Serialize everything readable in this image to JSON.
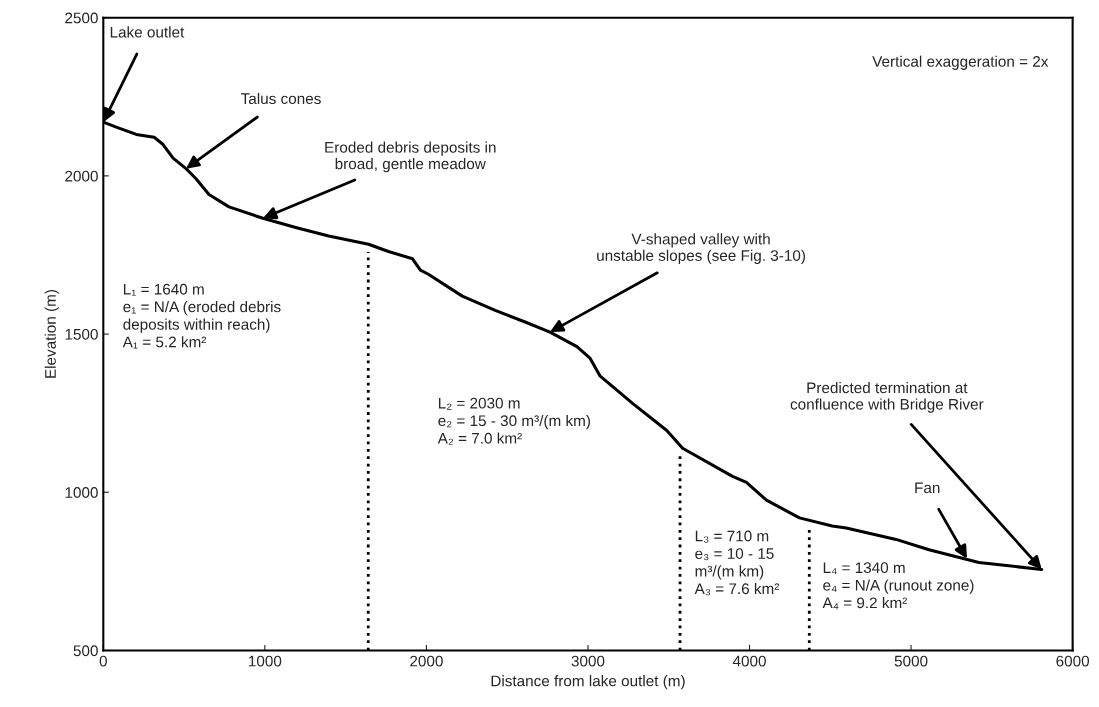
{
  "chart_data": {
    "type": "line",
    "xlabel": "Distance from lake outlet (m)",
    "ylabel": "Elevation (m)",
    "xlim": [
      0,
      6000
    ],
    "ylim": [
      500,
      2500
    ],
    "xticks": [
      0,
      1000,
      2000,
      3000,
      4000,
      5000,
      6000
    ],
    "yticks": [
      500,
      1000,
      1500,
      2000,
      2500
    ],
    "grid": false,
    "legend": false,
    "marker": "none",
    "line_style": "solid",
    "series": [
      {
        "color": "#000000",
        "x": [
          0,
          80,
          204,
          315,
          370,
          432,
          512,
          574,
          654,
          778,
          988,
          1191,
          1395,
          1642,
          1765,
          1914,
          1963,
          2012,
          2222,
          2426,
          2611,
          2765,
          2932,
          3012,
          3074,
          3278,
          3488,
          3586,
          3895,
          3981,
          4105,
          4309,
          4512,
          4599,
          4907,
          5111,
          5420,
          5809
        ],
        "values": [
          2170,
          2154,
          2131,
          2122,
          2099,
          2056,
          2023,
          1991,
          1941,
          1902,
          1866,
          1837,
          1810,
          1784,
          1761,
          1738,
          1702,
          1689,
          1620,
          1575,
          1538,
          1506,
          1460,
          1424,
          1368,
          1280,
          1195,
          1139,
          1050,
          1031,
          975,
          919,
          893,
          887,
          851,
          818,
          778,
          756
        ]
      }
    ],
    "ref_lines": [
      {
        "axis": "x",
        "value": 1640,
        "color": "#000000",
        "line_style": "dotted"
      },
      {
        "axis": "x",
        "value": 3570,
        "color": "#000000",
        "line_style": "dotted"
      },
      {
        "axis": "x",
        "value": 4370,
        "color": "#000000",
        "line_style": "dotted"
      }
    ],
    "annotations": [
      {
        "text": "Lake outlet",
        "x": 0,
        "y": 2170
      },
      {
        "text": "Talus cones",
        "x": 512,
        "y": 2023
      },
      {
        "text": "Eroded debris deposits in\nbroad, gentle meadow",
        "x": 988,
        "y": 1866
      },
      {
        "text": "V-shaped valley with\nunstable slopes (see Fig. 3-10)",
        "x": 2765,
        "y": 1506
      },
      {
        "text": "Predicted termination at\nconfluence with Bridge River",
        "x": 5809,
        "y": 756
      },
      {
        "text": "Fan",
        "x": 5346,
        "y": 790
      },
      "Vertical exaggeration = 2x",
      "L₁ = 1640 m\ne₁ = N/A (eroded debris\ndeposits within reach)\nA₁ = 5.2 km²",
      "L₂ = 2030 m\ne₂ = 15 - 30 m³/(m km)\nA₂ = 7.0 km²",
      "L₃ = 710 m\ne₃ = 10 - 15\nm³/(m km)\nA₃ = 7.6 km²",
      "L₄ = 1340 m\ne₄ = N/A (runout zone)\nA₄ = 9.2 km²"
    ]
  }
}
